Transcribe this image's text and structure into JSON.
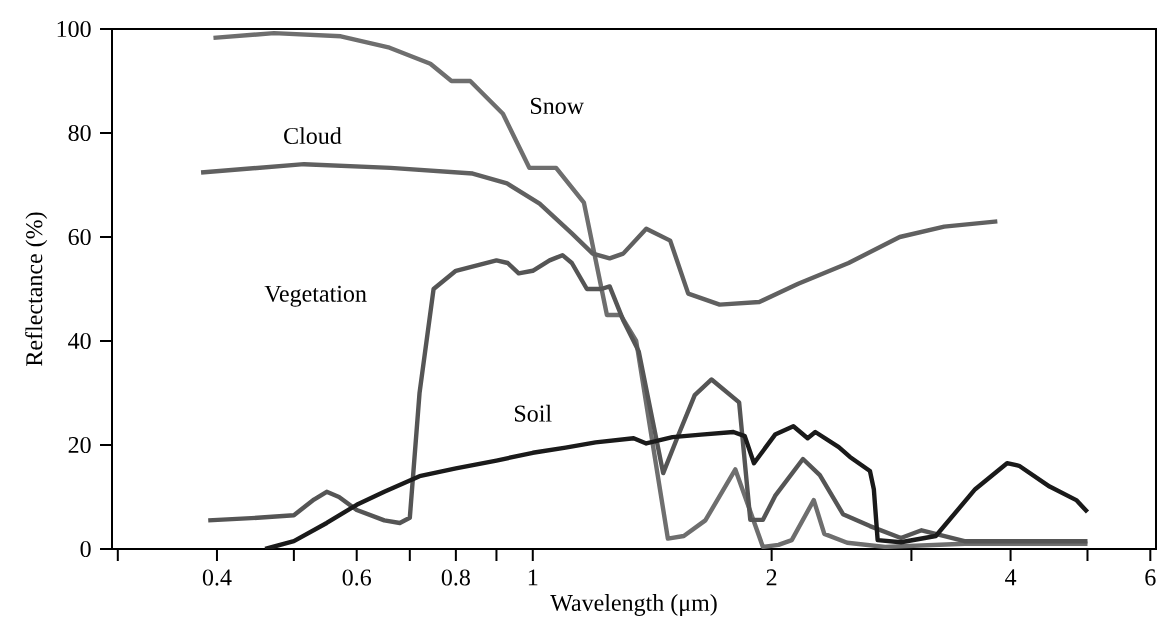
{
  "chart_data": {
    "type": "line",
    "xlabel": "Wavelength (μm)",
    "ylabel": "Reflectance (%)",
    "log": "x",
    "xlim": [
      0.295,
      6.1
    ],
    "ylim": [
      0,
      100
    ],
    "xticks": [
      {
        "value": 0.3,
        "label": null
      },
      0.4,
      {
        "value": 0.5,
        "label": null
      },
      0.6,
      {
        "value": 0.7,
        "label": null
      },
      0.8,
      {
        "value": 0.9,
        "label": null
      },
      1,
      2,
      {
        "value": 3,
        "label": null
      },
      4,
      {
        "value": 5,
        "label": null
      },
      6
    ],
    "yticks": [
      0,
      20,
      40,
      60,
      80,
      100
    ],
    "series": [
      {
        "name": "Snow",
        "color": "#6e6e6e",
        "x": [
          0.396,
          0.472,
          0.573,
          0.66,
          0.743,
          0.79,
          0.834,
          0.917,
          0.99,
          1.07,
          1.16,
          1.24,
          1.29,
          1.35,
          1.48,
          1.55,
          1.65,
          1.8,
          1.95,
          2.04,
          2.12,
          2.26,
          2.33,
          2.49,
          2.78,
          3.5,
          4.5,
          5.0
        ],
        "values": [
          98.3,
          99.2,
          98.6,
          96.4,
          93.3,
          90,
          90,
          83.7,
          73.3,
          73.3,
          66.6,
          45,
          45,
          40,
          2,
          2.5,
          5.5,
          15.3,
          0.4,
          0.8,
          1.7,
          9.4,
          2.9,
          1.2,
          0.4,
          1,
          1,
          1
        ]
      },
      {
        "name": "Cloud",
        "color": "#606060",
        "x": [
          0.382,
          0.515,
          0.662,
          0.84,
          0.928,
          1.02,
          1.12,
          1.19,
          1.25,
          1.3,
          1.39,
          1.49,
          1.57,
          1.72,
          1.93,
          2.16,
          2.5,
          2.9,
          3.3,
          3.85
        ],
        "values": [
          72.4,
          74,
          73.3,
          72.2,
          70.3,
          66.4,
          60.7,
          56.8,
          55.9,
          56.8,
          61.6,
          59.3,
          49.1,
          47,
          47.5,
          51,
          55,
          60,
          62,
          63
        ]
      },
      {
        "name": "Vegetation",
        "color": "#555555",
        "x": [
          0.39,
          0.45,
          0.5,
          0.53,
          0.55,
          0.57,
          0.6,
          0.65,
          0.68,
          0.7,
          0.72,
          0.75,
          0.8,
          0.9,
          0.93,
          0.96,
          1.0,
          1.05,
          1.09,
          1.12,
          1.17,
          1.22,
          1.25,
          1.3,
          1.36,
          1.46,
          1.52,
          1.6,
          1.68,
          1.82,
          1.88,
          1.95,
          2.02,
          2.19,
          2.3,
          2.46,
          2.66,
          2.91,
          3.09,
          3.5,
          4.0,
          5.0
        ],
        "values": [
          5.5,
          6,
          6.5,
          9.5,
          11,
          10,
          7.5,
          5.5,
          5,
          6,
          30,
          50,
          53.5,
          55.5,
          55,
          53,
          53.5,
          55.5,
          56.5,
          55,
          50,
          50,
          50.5,
          44,
          38,
          14.6,
          21.3,
          29.6,
          32.6,
          28.2,
          5.6,
          5.6,
          10.2,
          17.3,
          14.2,
          6.7,
          4.4,
          2.1,
          3.6,
          1.5,
          1.5,
          1.5
        ]
      },
      {
        "name": "Soil",
        "color": "#1a1a1a",
        "x": [
          0.46,
          0.5,
          0.55,
          0.6,
          0.65,
          0.72,
          0.8,
          0.9,
          1.0,
          1.1,
          1.2,
          1.34,
          1.39,
          1.5,
          1.63,
          1.79,
          1.85,
          1.9,
          2.02,
          2.13,
          2.22,
          2.27,
          2.43,
          2.51,
          2.66,
          2.69,
          2.72,
          2.91,
          3.22,
          3.61,
          3.96,
          4.1,
          4.48,
          4.84,
          5.0
        ],
        "values": [
          0,
          1.5,
          5,
          8.5,
          11,
          14,
          15.5,
          17,
          18.5,
          19.5,
          20.5,
          21.3,
          20.3,
          21.5,
          22,
          22.5,
          21.7,
          16.5,
          22,
          23.6,
          21.3,
          22.5,
          19.6,
          17.7,
          15,
          11.5,
          1.7,
          1.3,
          2.5,
          11.5,
          16.5,
          16,
          12,
          9.4,
          7.1
        ]
      }
    ]
  }
}
